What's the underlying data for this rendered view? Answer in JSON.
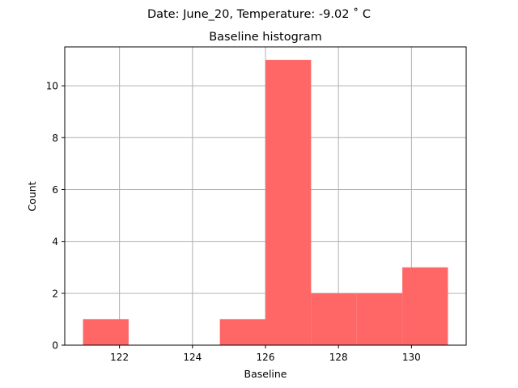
{
  "figure": {
    "suptitle": "Date: June_20, Temperature: -9.02 ˚ C"
  },
  "chart_data": {
    "type": "bar",
    "title": "Baseline histogram",
    "xlabel": "Baseline",
    "ylabel": "Count",
    "xlim": [
      120.5,
      131.5
    ],
    "ylim": [
      0,
      11.5
    ],
    "xticks": [
      122,
      124,
      126,
      128,
      130
    ],
    "yticks": [
      0,
      2,
      4,
      6,
      8,
      10
    ],
    "grid": true,
    "bar_color": "#ff6666",
    "bins": [
      {
        "x0": 121.0,
        "x1": 122.25,
        "count": 1
      },
      {
        "x0": 122.25,
        "x1": 123.5,
        "count": 0
      },
      {
        "x0": 123.5,
        "x1": 124.75,
        "count": 0
      },
      {
        "x0": 124.75,
        "x1": 126.0,
        "count": 1
      },
      {
        "x0": 126.0,
        "x1": 127.25,
        "count": 11
      },
      {
        "x0": 127.25,
        "x1": 128.5,
        "count": 2
      },
      {
        "x0": 128.5,
        "x1": 129.75,
        "count": 2
      },
      {
        "x0": 129.75,
        "x1": 131.0,
        "count": 3
      }
    ]
  }
}
